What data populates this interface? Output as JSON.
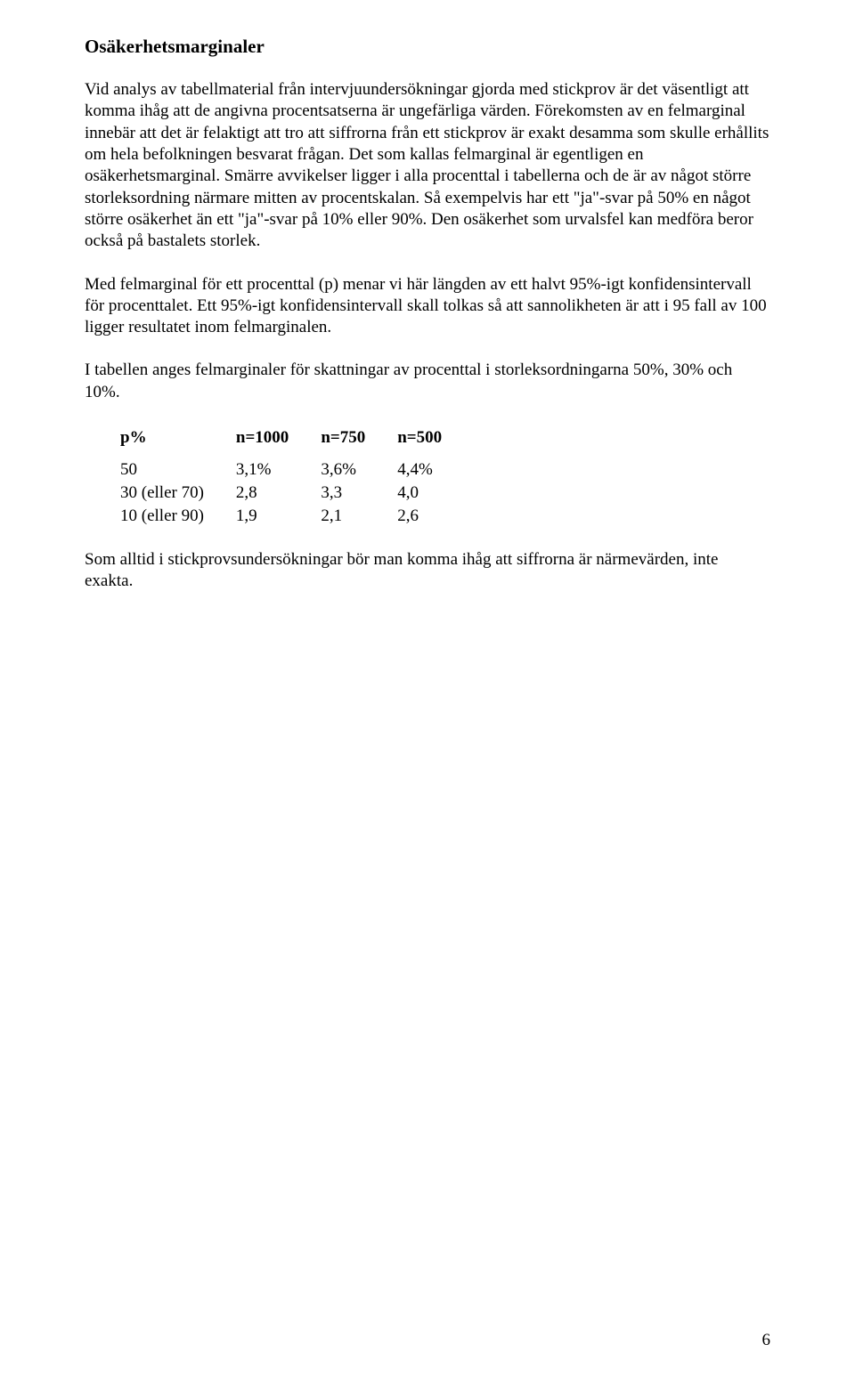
{
  "heading": "Osäkerhetsmarginaler",
  "paragraphs": {
    "p1": "Vid analys av tabellmaterial från intervjuundersökningar gjorda med stickprov är det väsentligt att komma ihåg att de angivna procentsatserna är ungefärliga värden. Förekomsten av en felmarginal innebär att det är felaktigt att tro att siffrorna från ett stickprov är exakt desamma som skulle erhållits om hela befolkningen besvarat frågan. Det som kallas felmarginal är egentligen en osäkerhetsmarginal. Smärre avvikelser ligger i alla procenttal i tabellerna och de är av något större storleksordning närmare mitten av procentskalan. Så exempelvis har ett \"ja\"-svar på 50% en något större osäkerhet än ett \"ja\"-svar på 10% eller 90%. Den osäkerhet som urvalsfel kan medföra beror också på bastalets storlek.",
    "p2": "Med felmarginal för ett procenttal (p) menar vi här längden av ett halvt 95%-igt konfidensintervall för procenttalet. Ett 95%-igt konfidensintervall skall tolkas så att sannolikheten är att i 95 fall av 100 ligger resultatet inom felmarginalen.",
    "p3": "I tabellen anges felmarginaler för skattningar av procenttal i storleksordningarna 50%, 30% och 10%.",
    "p4": "Som alltid i stickprovsundersökningar bör man komma ihåg att siffrorna är närmevärden, inte exakta."
  },
  "table": {
    "headers": [
      "p%",
      "n=1000",
      "n=750",
      "n=500"
    ],
    "rows": [
      [
        "50",
        "3,1%",
        "3,6%",
        "4,4%"
      ],
      [
        "30 (eller 70)",
        "2,8",
        "3,3",
        "4,0"
      ],
      [
        "10 (eller 90)",
        "1,9",
        "2,1",
        "2,6"
      ]
    ]
  },
  "page_number": "6"
}
